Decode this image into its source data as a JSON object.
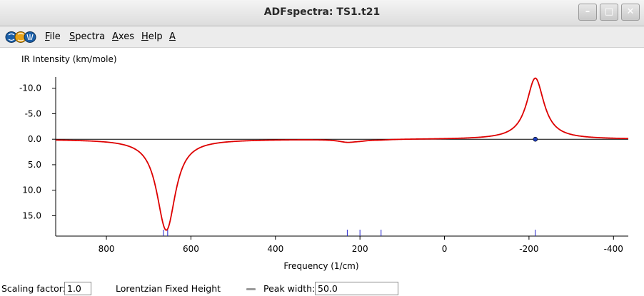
{
  "window": {
    "title": "ADFspectra: TS1.t21",
    "minimize_glyph": "–",
    "maximize_glyph": "□",
    "close_glyph": "✕"
  },
  "menu": {
    "items": [
      {
        "id": "file",
        "accel": "F",
        "rest": "ile"
      },
      {
        "id": "spectra",
        "accel": "S",
        "rest": "pectra"
      },
      {
        "id": "axes",
        "accel": "A",
        "rest": "xes"
      },
      {
        "id": "help",
        "accel": "H",
        "rest": "elp"
      },
      {
        "id": "a",
        "accel": "A",
        "rest": ""
      }
    ]
  },
  "chart_data": {
    "type": "line",
    "ylabel": "IR Intensity (km/mole)",
    "xlabel": "Frequency (1/cm)",
    "x_axis_reversed": true,
    "y_axis_reversed": true,
    "xlim": [
      920,
      -435
    ],
    "ylim": [
      -12.2,
      19.0
    ],
    "x_ticks": [
      800,
      600,
      400,
      200,
      0,
      -200,
      -400
    ],
    "x_tick_labels": [
      "800",
      "600",
      "400",
      "200",
      "0",
      "-200",
      "-400"
    ],
    "y_ticks": [
      -10.0,
      -5.0,
      0.0,
      5.0,
      10.0,
      15.0
    ],
    "y_tick_labels": [
      "-10.0",
      "-5.0",
      "0.0",
      "5.0",
      "10.0",
      "15.0"
    ],
    "line_shape": "lorentzian",
    "peak_width": 50.0,
    "peaks": [
      {
        "freq": 665,
        "intensity": 6.5
      },
      {
        "freq": 655,
        "intensity": 12.0
      },
      {
        "freq": 230,
        "intensity": 0.5
      },
      {
        "freq": 200,
        "intensity": 0.2
      },
      {
        "freq": 150,
        "intensity": 0.1
      },
      {
        "freq": -215,
        "intensity": -12.0
      }
    ],
    "stick_positions": [
      665,
      655,
      230,
      200,
      150,
      -215
    ],
    "selected_peak": {
      "freq": -215,
      "intensity": 0.0
    },
    "colors": {
      "curve": "#dd0000",
      "sticks": "#2222cc",
      "baseline": "#000000",
      "marker": "#1f3fbf"
    },
    "grid": false
  },
  "controls": {
    "scaling_label": "Scaling factor:",
    "scaling_value": "1.0",
    "shape_label": "Lorentzian Fixed Height",
    "peak_width_label": "Peak width:",
    "peak_width_value": "50.0"
  }
}
